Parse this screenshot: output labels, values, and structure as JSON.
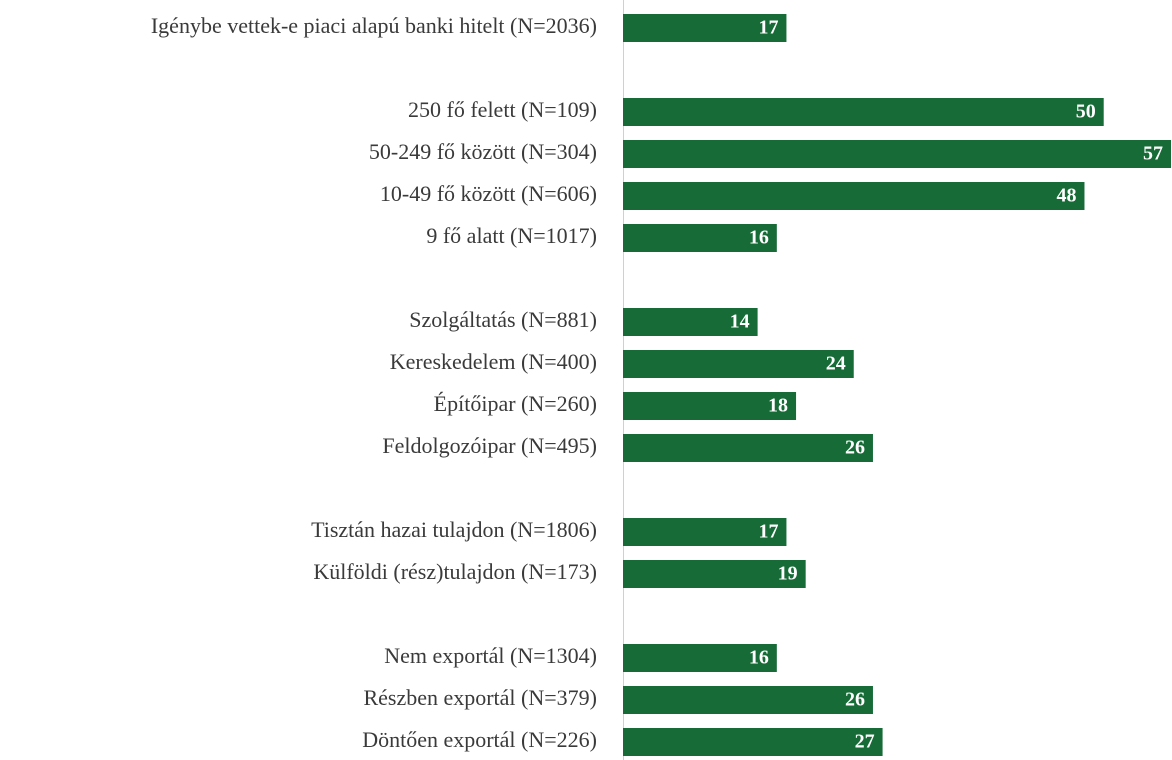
{
  "chart_data": {
    "type": "bar",
    "orientation": "horizontal",
    "color": "#176b37",
    "categories": [
      "Igénybe vettek-e piaci alapú banki hitelt (N=2036)",
      null,
      "250 fő felett (N=109)",
      "50-249 fő között (N=304)",
      "10-49 fő között (N=606)",
      "9 fő alatt (N=1017)",
      null,
      "Szolgáltatás (N=881)",
      "Kereskedelem (N=400)",
      "Építőipar (N=260)",
      "Feldolgozóipar (N=495)",
      null,
      "Tisztán hazai tulajdon (N=1806)",
      "Külföldi (rész)tulajdon (N=173)",
      null,
      "Nem exportál (N=1304)",
      "Részben exportál (N=379)",
      "Döntően exportál (N=226)"
    ],
    "values": [
      17,
      null,
      50,
      57,
      48,
      16,
      null,
      14,
      24,
      18,
      26,
      null,
      17,
      19,
      null,
      16,
      26,
      27
    ]
  }
}
